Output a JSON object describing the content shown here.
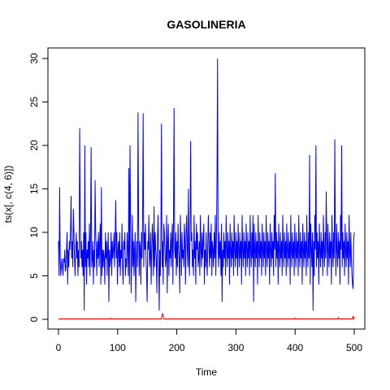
{
  "chart_data": {
    "type": "line",
    "title": "GASOLINERIA",
    "xlabel": "Time",
    "ylabel": "ts(x[, c(4, 6)])",
    "xlim": [
      0,
      500
    ],
    "ylim": [
      0,
      30
    ],
    "x_ticks": [
      "0",
      "100",
      "200",
      "300",
      "400",
      "500"
    ],
    "y_ticks": [
      "0",
      "5",
      "10",
      "15",
      "20",
      "25",
      "30"
    ],
    "x_tick_values": [
      0,
      100,
      200,
      300,
      400,
      500
    ],
    "y_tick_values": [
      0,
      5,
      10,
      15,
      20,
      25,
      30
    ],
    "series": [
      {
        "color": "#0000ff",
        "values": [
          9,
          5,
          15.2,
          7,
          5,
          6,
          7,
          6,
          5,
          7,
          6.5,
          8,
          5.5,
          6,
          8,
          10,
          4,
          8,
          6,
          9,
          8,
          10,
          14.2,
          7,
          9,
          6,
          12.7,
          10,
          7,
          5,
          8,
          10,
          7,
          9,
          5,
          8,
          6,
          22,
          12,
          7,
          9,
          6,
          8,
          5,
          10,
          1,
          20,
          6,
          10,
          4,
          8,
          7,
          9,
          6,
          11,
          5,
          10,
          19.8,
          6,
          7,
          9,
          4,
          8,
          6,
          16,
          10,
          8,
          5,
          9,
          7,
          10,
          6,
          9,
          11,
          4,
          15.2,
          5,
          8,
          6,
          8,
          7,
          4,
          10,
          7,
          9,
          5,
          8,
          10,
          2,
          8,
          6,
          7,
          10,
          5,
          9,
          7,
          8,
          10,
          6,
          9,
          13.7,
          7,
          10,
          4,
          8,
          9,
          6,
          10,
          5,
          8,
          7,
          11,
          6,
          4,
          9,
          8,
          10,
          5,
          7,
          6,
          10,
          8,
          5,
          17.4,
          4,
          20,
          11,
          3,
          7,
          12,
          6,
          9,
          5,
          8,
          10,
          2,
          7,
          9,
          6,
          23.8,
          11,
          5,
          9,
          8,
          4,
          10,
          7,
          12,
          23.7,
          6,
          10,
          8,
          11,
          7,
          5,
          2,
          9,
          8,
          12,
          6,
          7,
          10,
          4,
          8,
          11,
          9,
          5,
          13,
          6,
          10,
          8,
          7,
          3,
          9,
          12,
          7,
          1,
          8,
          5,
          10,
          22.5,
          6,
          9,
          4,
          11,
          10,
          8,
          6,
          7,
          12,
          3,
          9,
          11,
          5,
          8,
          7,
          10,
          6,
          9,
          11,
          4,
          12,
          24.3,
          8,
          7,
          10,
          5,
          9,
          6,
          11,
          8,
          7,
          3,
          12,
          9,
          5,
          10,
          7,
          8,
          6,
          11,
          9,
          4,
          10,
          12,
          8,
          6,
          15,
          7,
          5,
          11,
          20.5,
          9,
          10,
          6,
          8,
          5,
          12,
          7,
          9,
          4,
          11,
          8,
          10,
          6,
          7,
          9,
          5,
          12,
          8,
          6,
          10,
          7,
          9,
          11,
          4,
          8,
          6,
          10,
          7,
          5,
          9,
          12,
          8,
          6,
          10,
          7,
          11,
          5,
          9,
          8,
          6,
          10,
          7,
          12,
          5,
          9,
          15.5,
          30,
          8,
          6,
          10,
          7,
          9,
          5,
          11,
          2,
          8,
          6,
          10,
          7,
          9,
          5,
          12,
          8,
          6,
          10,
          7,
          9,
          4,
          11,
          8,
          6,
          10,
          7,
          9,
          5,
          12,
          8,
          6,
          10,
          7,
          9,
          5,
          11,
          8,
          6,
          10,
          7,
          9,
          4,
          12,
          8,
          6,
          10,
          7,
          9,
          5,
          11,
          8,
          6,
          10,
          7,
          9,
          5,
          12,
          8,
          6,
          10,
          7,
          12,
          2,
          11,
          8,
          6,
          10,
          7,
          9,
          4,
          12,
          8,
          6,
          10,
          7,
          9,
          5,
          11,
          8,
          6,
          10,
          7,
          9,
          5,
          12,
          8,
          6,
          10,
          7,
          9,
          4,
          11,
          8,
          6,
          10,
          7,
          9,
          5,
          12,
          8,
          16.8,
          6,
          10,
          7,
          9,
          4,
          11,
          8,
          6,
          10,
          7,
          9,
          5,
          12,
          8,
          6,
          10,
          7,
          9,
          5,
          11,
          8,
          6,
          10,
          7,
          9,
          4,
          12,
          8,
          6,
          10,
          7,
          9,
          5,
          11,
          8,
          6,
          10,
          7,
          9,
          5,
          12,
          8,
          6,
          10,
          7,
          9,
          4,
          11,
          8,
          6,
          10,
          7,
          9,
          5,
          12,
          8,
          6,
          10,
          7,
          18.9,
          4,
          11,
          8,
          6,
          10,
          1,
          9,
          5,
          12,
          8,
          20,
          6,
          10,
          7,
          9,
          4,
          11,
          8,
          6,
          10,
          7,
          9,
          5,
          12,
          8,
          6,
          10,
          7,
          14.7,
          9,
          5,
          11,
          8,
          6,
          10,
          7,
          9,
          4,
          12,
          8,
          6,
          10,
          7,
          20.7,
          9,
          5,
          11,
          8,
          6,
          10,
          7,
          9,
          4,
          12,
          8,
          20,
          6,
          10,
          7,
          9,
          5,
          11,
          8,
          6,
          10,
          7,
          9,
          4,
          12,
          8,
          6,
          10,
          7,
          5,
          4,
          3.5,
          9,
          10
        ],
        "label": ""
      },
      {
        "color": "#ff0000",
        "values_note": "near-zero series with small spikes",
        "base": 0.05,
        "spikes": [
          [
            88,
            0.15
          ],
          [
            175,
            0.45
          ],
          [
            176,
            0.7
          ],
          [
            177,
            0.3
          ],
          [
            400,
            0.15
          ],
          [
            473,
            0.2
          ],
          [
            498,
            0.4
          ],
          [
            500,
            0.25
          ]
        ]
      }
    ]
  }
}
